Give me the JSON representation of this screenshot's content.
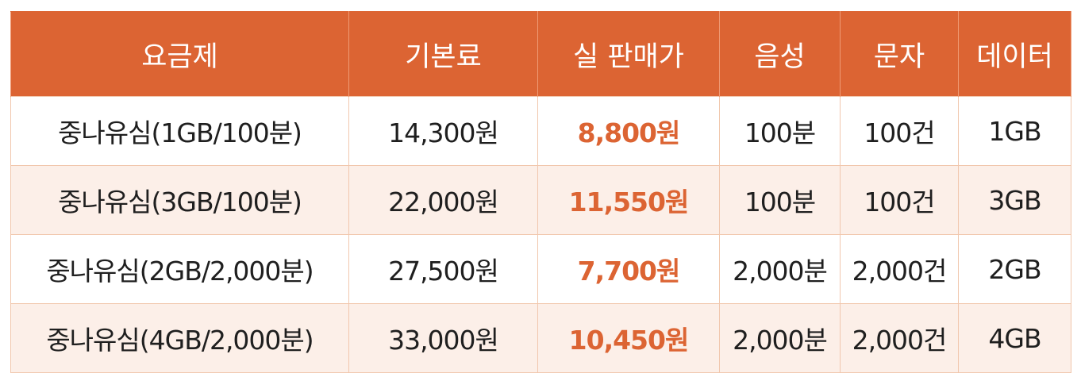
{
  "header": {
    "plan": "요금제",
    "base_price": "기본료",
    "sale_price": "실 판매가",
    "voice": "음성",
    "sms": "문자",
    "data": "데이터"
  },
  "rows": [
    {
      "plan": "중나유심(1GB/100분)",
      "base_price": "14,300원",
      "sale_price": "8,800원",
      "voice": "100분",
      "sms": "100건",
      "data": "1GB"
    },
    {
      "plan": "중나유심(3GB/100분)",
      "base_price": "22,000원",
      "sale_price": "11,550원",
      "voice": "100분",
      "sms": "100건",
      "data": "3GB"
    },
    {
      "plan": "중나유심(2GB/2,000분)",
      "base_price": "27,500원",
      "sale_price": "7,700원",
      "voice": "2,000분",
      "sms": "2,000건",
      "data": "2GB"
    },
    {
      "plan": "중나유심(4GB/2,000분)",
      "base_price": "33,000원",
      "sale_price": "10,450원",
      "voice": "2,000분",
      "sms": "2,000건",
      "data": "4GB"
    }
  ],
  "colors": {
    "header_bg": "#dc6433",
    "accent_price": "#dc6433",
    "alt_row_bg": "#fcefe8",
    "border": "#f1c7ad"
  }
}
